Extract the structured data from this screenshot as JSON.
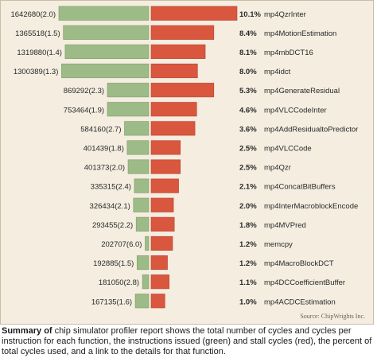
{
  "chart_data": {
    "type": "bar",
    "orientation": "horizontal",
    "description": "Diverging bars per function: instructions issued (green) on the left, stall cycles (red) on the right",
    "colors": {
      "issued": "#9dbb86",
      "stall": "#d9573e",
      "issued_stroke": "#7e9d69",
      "stall_stroke": "#b8432d"
    },
    "rows": [
      {
        "cycles_label": "1642680(2.0)",
        "percent_label": "10.1%",
        "function": "mp4QzrInter",
        "issued": 1.0,
        "stall": 1.0
      },
      {
        "cycles_label": "1365518(1.5)",
        "percent_label": "8.4%",
        "function": "mp4MotionEstimation",
        "issued": 0.95,
        "stall": 0.73
      },
      {
        "cycles_label": "1319880(1.4)",
        "percent_label": "8.1%",
        "function": "mp4mbDCT16",
        "issued": 0.93,
        "stall": 0.63
      },
      {
        "cycles_label": "1300389(1.3)",
        "percent_label": "8.0%",
        "function": "mp4idct",
        "issued": 0.97,
        "stall": 0.54
      },
      {
        "cycles_label": "869292(2.3)",
        "percent_label": "5.3%",
        "function": "mp4GenerateResidual",
        "issued": 0.46,
        "stall": 0.73
      },
      {
        "cycles_label": "753464(1.9)",
        "percent_label": "4.6%",
        "function": "mp4VLCCodeInter",
        "issued": 0.46,
        "stall": 0.53
      },
      {
        "cycles_label": "584160(2.7)",
        "percent_label": "3.6%",
        "function": "mp4AddResidualtoPredictor",
        "issued": 0.27,
        "stall": 0.51
      },
      {
        "cycles_label": "401439(1.8)",
        "percent_label": "2.5%",
        "function": "mp4VLCCode",
        "issued": 0.24,
        "stall": 0.34
      },
      {
        "cycles_label": "401373(2.0)",
        "percent_label": "2.5%",
        "function": "mp4Qzr",
        "issued": 0.23,
        "stall": 0.34
      },
      {
        "cycles_label": "335315(2.4)",
        "percent_label": "2.1%",
        "function": "mp4ConcatBitBuffers",
        "issued": 0.16,
        "stall": 0.32
      },
      {
        "cycles_label": "326434(2.1)",
        "percent_label": "2.0%",
        "function": "mp4InterMacroblockEncode",
        "issued": 0.17,
        "stall": 0.26
      },
      {
        "cycles_label": "293455(2.2)",
        "percent_label": "1.8%",
        "function": "mp4MVPred",
        "issued": 0.14,
        "stall": 0.27
      },
      {
        "cycles_label": "202707(6.0)",
        "percent_label": "1.2%",
        "function": "memcpy",
        "issued": 0.04,
        "stall": 0.25
      },
      {
        "cycles_label": "192885(1.5)",
        "percent_label": "1.2%",
        "function": "mp4MacroBlockDCT",
        "issued": 0.13,
        "stall": 0.19
      },
      {
        "cycles_label": "181050(2.8)",
        "percent_label": "1.1%",
        "function": "mp4DCCoefficientBuffer",
        "issued": 0.07,
        "stall": 0.21
      },
      {
        "cycles_label": "167135(1.6)",
        "percent_label": "1.0%",
        "function": "mp4ACDCEstimation",
        "issued": 0.15,
        "stall": 0.16
      }
    ]
  },
  "source_note": "Source: ChipWrights Inc.",
  "caption": {
    "bold": "Summary of",
    "text": " chip simulator profiler report  shows the total number of cycles and cycles per instruction for each function, the instructions issued (green) and stall cycles (red), the percent of total cycles used, and a link to the details for that function."
  }
}
